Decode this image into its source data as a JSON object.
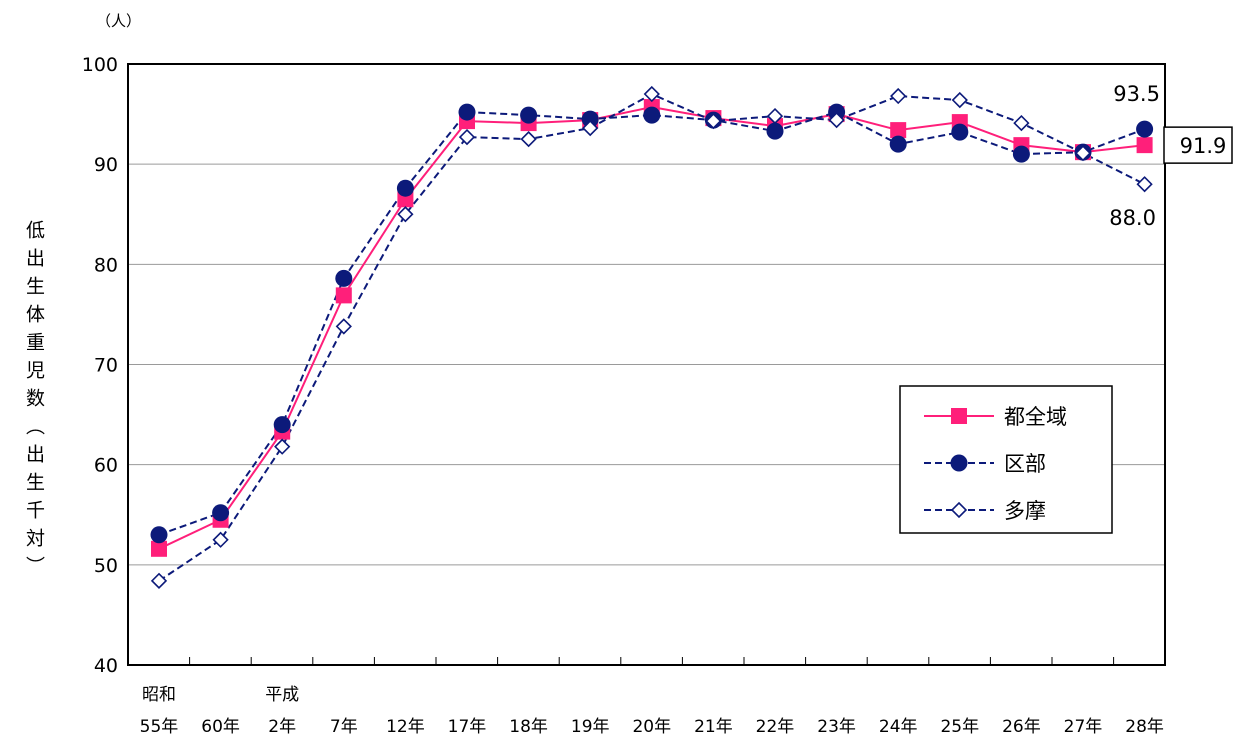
{
  "chart_data": {
    "type": "line",
    "unit_label": "（人）",
    "ylabel": "低出生体重児数（出生千対）",
    "ylim": [
      40,
      100
    ],
    "yticks": [
      40,
      50,
      60,
      70,
      80,
      90,
      100
    ],
    "grid": true,
    "legend_position": "right-center",
    "x_era_labels": [
      "昭和",
      "",
      "平成",
      "",
      "",
      "",
      "",
      "",
      "",
      "",
      "",
      "",
      "",
      "",
      "",
      "",
      ""
    ],
    "categories": [
      "55年",
      "60年",
      "2年",
      "7年",
      "12年",
      "17年",
      "18年",
      "19年",
      "20年",
      "21年",
      "22年",
      "23年",
      "24年",
      "25年",
      "26年",
      "27年",
      "28年"
    ],
    "series": [
      {
        "name": "都全域",
        "color": "#ff1f7a",
        "line_style": "solid",
        "marker": "square",
        "values": [
          51.6,
          54.5,
          63.3,
          76.9,
          86.5,
          94.3,
          94.1,
          94.4,
          95.7,
          94.6,
          93.8,
          95.0,
          93.4,
          94.2,
          91.9,
          91.2,
          91.9
        ]
      },
      {
        "name": "区部",
        "color": "#0c1a7a",
        "line_style": "dashed",
        "marker": "circle",
        "values": [
          53.0,
          55.2,
          64.0,
          78.6,
          87.6,
          95.2,
          94.9,
          94.5,
          94.9,
          94.4,
          93.3,
          95.2,
          92.0,
          93.2,
          91.0,
          91.2,
          93.5
        ]
      },
      {
        "name": "多摩",
        "color": "#0c1a7a",
        "line_style": "dashed",
        "marker": "diamond",
        "values": [
          48.4,
          52.5,
          61.8,
          73.8,
          85.0,
          92.7,
          92.5,
          93.6,
          97.0,
          94.3,
          94.8,
          94.4,
          96.8,
          96.4,
          94.1,
          91.1,
          88.0
        ]
      }
    ],
    "annotations": [
      {
        "text": "93.5",
        "series": "区部",
        "boxed": false
      },
      {
        "text": "91.9",
        "series": "都全域",
        "boxed": true
      },
      {
        "text": "88.0",
        "series": "多摩",
        "boxed": false
      }
    ]
  }
}
